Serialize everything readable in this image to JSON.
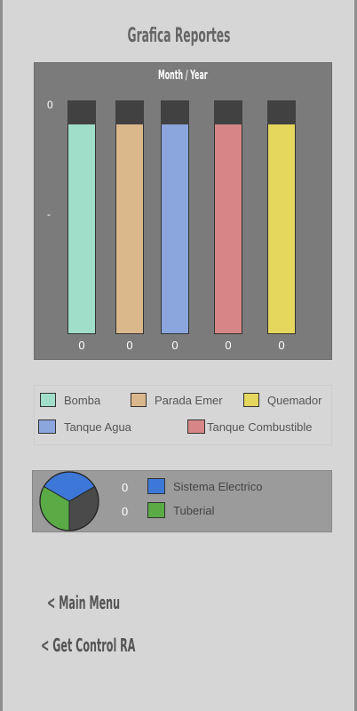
{
  "page": {
    "title": "Grafica Reportes"
  },
  "chart_data": {
    "type": "bar",
    "title": "Month / Year",
    "y_tick_labels": [
      "0",
      "-"
    ],
    "categories": [
      "Bomba",
      "Parada Emer",
      "Tanque Agua",
      "Tanque Combustible",
      "Quemador"
    ],
    "values": [
      0,
      0,
      0,
      0,
      0
    ],
    "value_labels": [
      "0",
      "0",
      "0",
      "0",
      "0"
    ],
    "colors": [
      "#a0dec9",
      "#dbb78c",
      "#8aa6dc",
      "#d68686",
      "#e5d65e"
    ]
  },
  "legend": {
    "items": [
      {
        "label": "Bomba",
        "color": "#a0dec9"
      },
      {
        "label": "Parada Emer",
        "color": "#dbb78c"
      },
      {
        "label": "Quemador",
        "color": "#e5d65e"
      },
      {
        "label": "Tanque Agua",
        "color": "#8aa6dc"
      },
      {
        "label": "Tanque Combustible",
        "color": "#d68686"
      }
    ]
  },
  "pie": {
    "items": [
      {
        "value": "0",
        "label": "Sistema Electrico",
        "color": "#3d78d8"
      },
      {
        "value": "0",
        "label": "Tuberial",
        "color": "#5aaa46"
      }
    ],
    "slice_colors": [
      "#3d78d8",
      "#4a4a4a",
      "#5aaa46"
    ]
  },
  "nav": {
    "main_menu": "< Main Menu",
    "get_control": "< Get Control RA"
  }
}
